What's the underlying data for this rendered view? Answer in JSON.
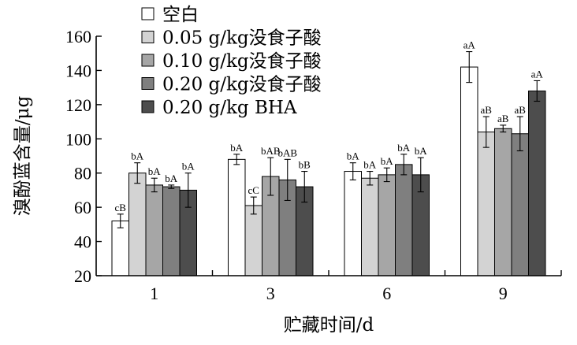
{
  "chart_data": {
    "type": "bar",
    "xlabel": "贮藏时间/d",
    "ylabel": "溴酚蓝含量/μg",
    "ylim": [
      20,
      160
    ],
    "yticks": [
      20,
      40,
      60,
      80,
      100,
      120,
      140,
      160
    ],
    "categories": [
      "1",
      "3",
      "6",
      "9"
    ],
    "legend_position": "top-left",
    "series": [
      {
        "name": "空白",
        "color": "#ffffff",
        "values": [
          52,
          88,
          81,
          142
        ],
        "errors": [
          4,
          3,
          5,
          9
        ],
        "labels": [
          "cB",
          "bA",
          "bA",
          "aA"
        ]
      },
      {
        "name": "0.05 g/kg没食子酸",
        "color": "#d3d3d3",
        "values": [
          80,
          61,
          77,
          104
        ],
        "errors": [
          6,
          5,
          4,
          9
        ],
        "labels": [
          "bA",
          "cC",
          "bA",
          "aB"
        ]
      },
      {
        "name": "0.10 g/kg没食子酸",
        "color": "#a6a6a6",
        "values": [
          73,
          78,
          79,
          106
        ],
        "errors": [
          4,
          11,
          4,
          2
        ],
        "labels": [
          "bA",
          "bAB",
          "bA",
          "aB"
        ]
      },
      {
        "name": "0.20 g/kg没食子酸",
        "color": "#7f7f7f",
        "values": [
          72,
          76,
          85,
          103
        ],
        "errors": [
          1,
          12,
          6,
          10
        ],
        "labels": [
          "bA",
          "bAB",
          "bA",
          "aB"
        ]
      },
      {
        "name": "0.20 g/kg BHA",
        "color": "#4d4d4d",
        "values": [
          70,
          72,
          79,
          128
        ],
        "errors": [
          10,
          9,
          10,
          6
        ],
        "labels": [
          "bA",
          "bB",
          "bA",
          "aA"
        ]
      }
    ]
  }
}
